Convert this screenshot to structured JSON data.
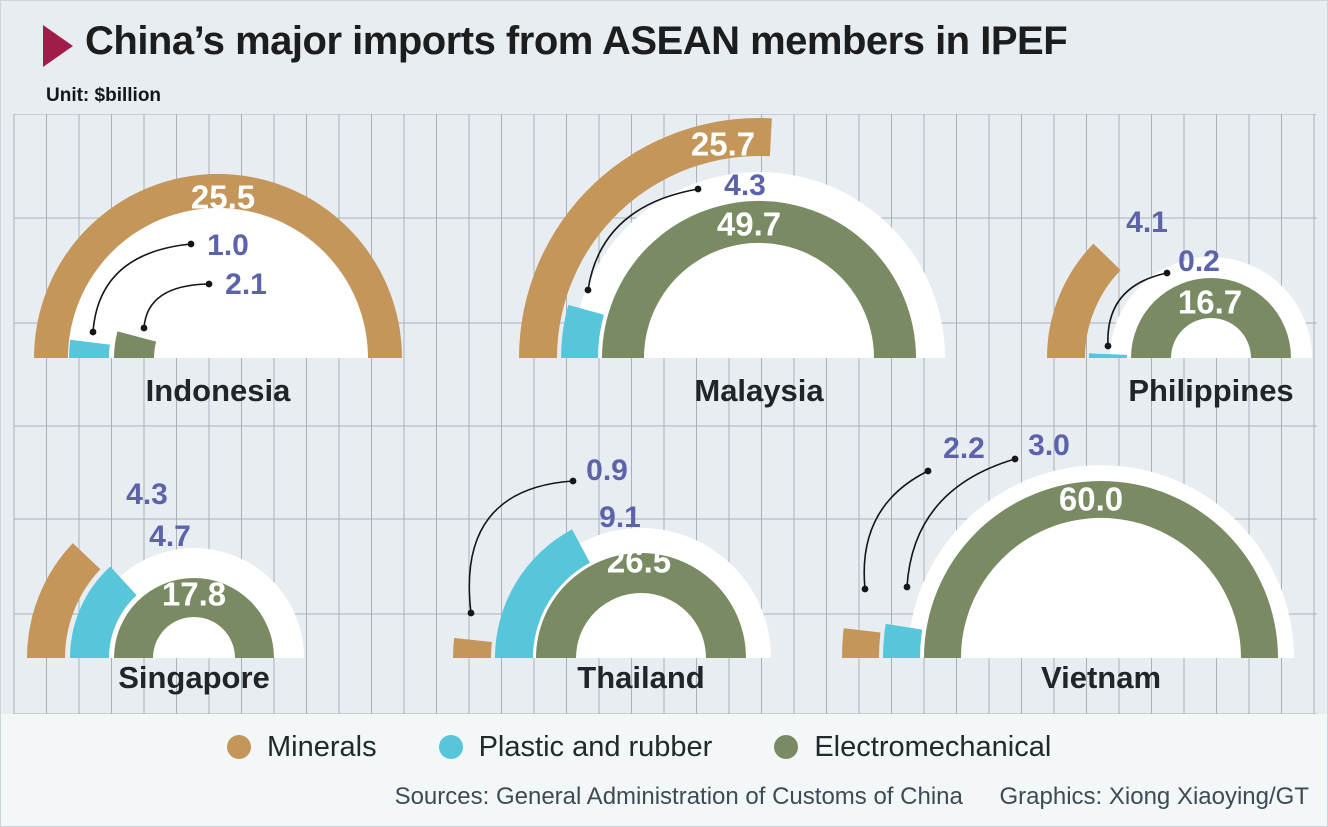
{
  "title": "China’s major imports from ASEAN members in IPEF",
  "unit_label": "Unit: $billion",
  "accent_color": "#a11d49",
  "colors": {
    "minerals": "#c4965a",
    "plastic_and_rubber": "#57c5da",
    "electromechanical": "#7a8a63",
    "value_label_blue": "#5c63ab",
    "value_label_white": "#ffffff",
    "grid_line": "#a7b1ba",
    "chart_background": "#e8edf2",
    "lower_background": "#f3f7f8"
  },
  "legend": [
    {
      "label": "Minerals",
      "color": "#c4965a"
    },
    {
      "label": "Plastic and rubber",
      "color": "#57c5da"
    },
    {
      "label": "Electromechanical",
      "color": "#7a8a63"
    }
  ],
  "footer": {
    "sources": "Sources: General Administration of Customs of China",
    "graphics": "Graphics: Xiong Xiaoying/GT"
  },
  "chart_data": {
    "type": "pie",
    "subtype": "semicircular-ring-small-multiples",
    "unit": "$billion",
    "series_names": [
      "Minerals",
      "Plastic and rubber",
      "Electromechanical"
    ],
    "note": "Each country chart: three concentric half-rings starting at the left baseline; sweep angle proportional to value relative to that country's largest value (largest value = 180 degrees). Outer ring = Minerals, middle ring = Plastic and rubber, inner ring = Electromechanical.",
    "countries": [
      {
        "name": "Indonesia",
        "minerals": 25.5,
        "plastic_and_rubber": 1.0,
        "electromechanical": 2.1
      },
      {
        "name": "Malaysia",
        "minerals": 25.7,
        "plastic_and_rubber": 4.3,
        "electromechanical": 49.7
      },
      {
        "name": "Philippines",
        "minerals": 4.1,
        "plastic_and_rubber": 0.2,
        "electromechanical": 16.7
      },
      {
        "name": "Singapore",
        "minerals": 4.3,
        "plastic_and_rubber": 4.7,
        "electromechanical": 17.8
      },
      {
        "name": "Thailand",
        "minerals": 0.9,
        "plastic_and_rubber": 9.1,
        "electromechanical": 26.5
      },
      {
        "name": "Vietnam",
        "minerals": 2.2,
        "plastic_and_rubber": 3.0,
        "electromechanical": 60.0
      }
    ]
  }
}
